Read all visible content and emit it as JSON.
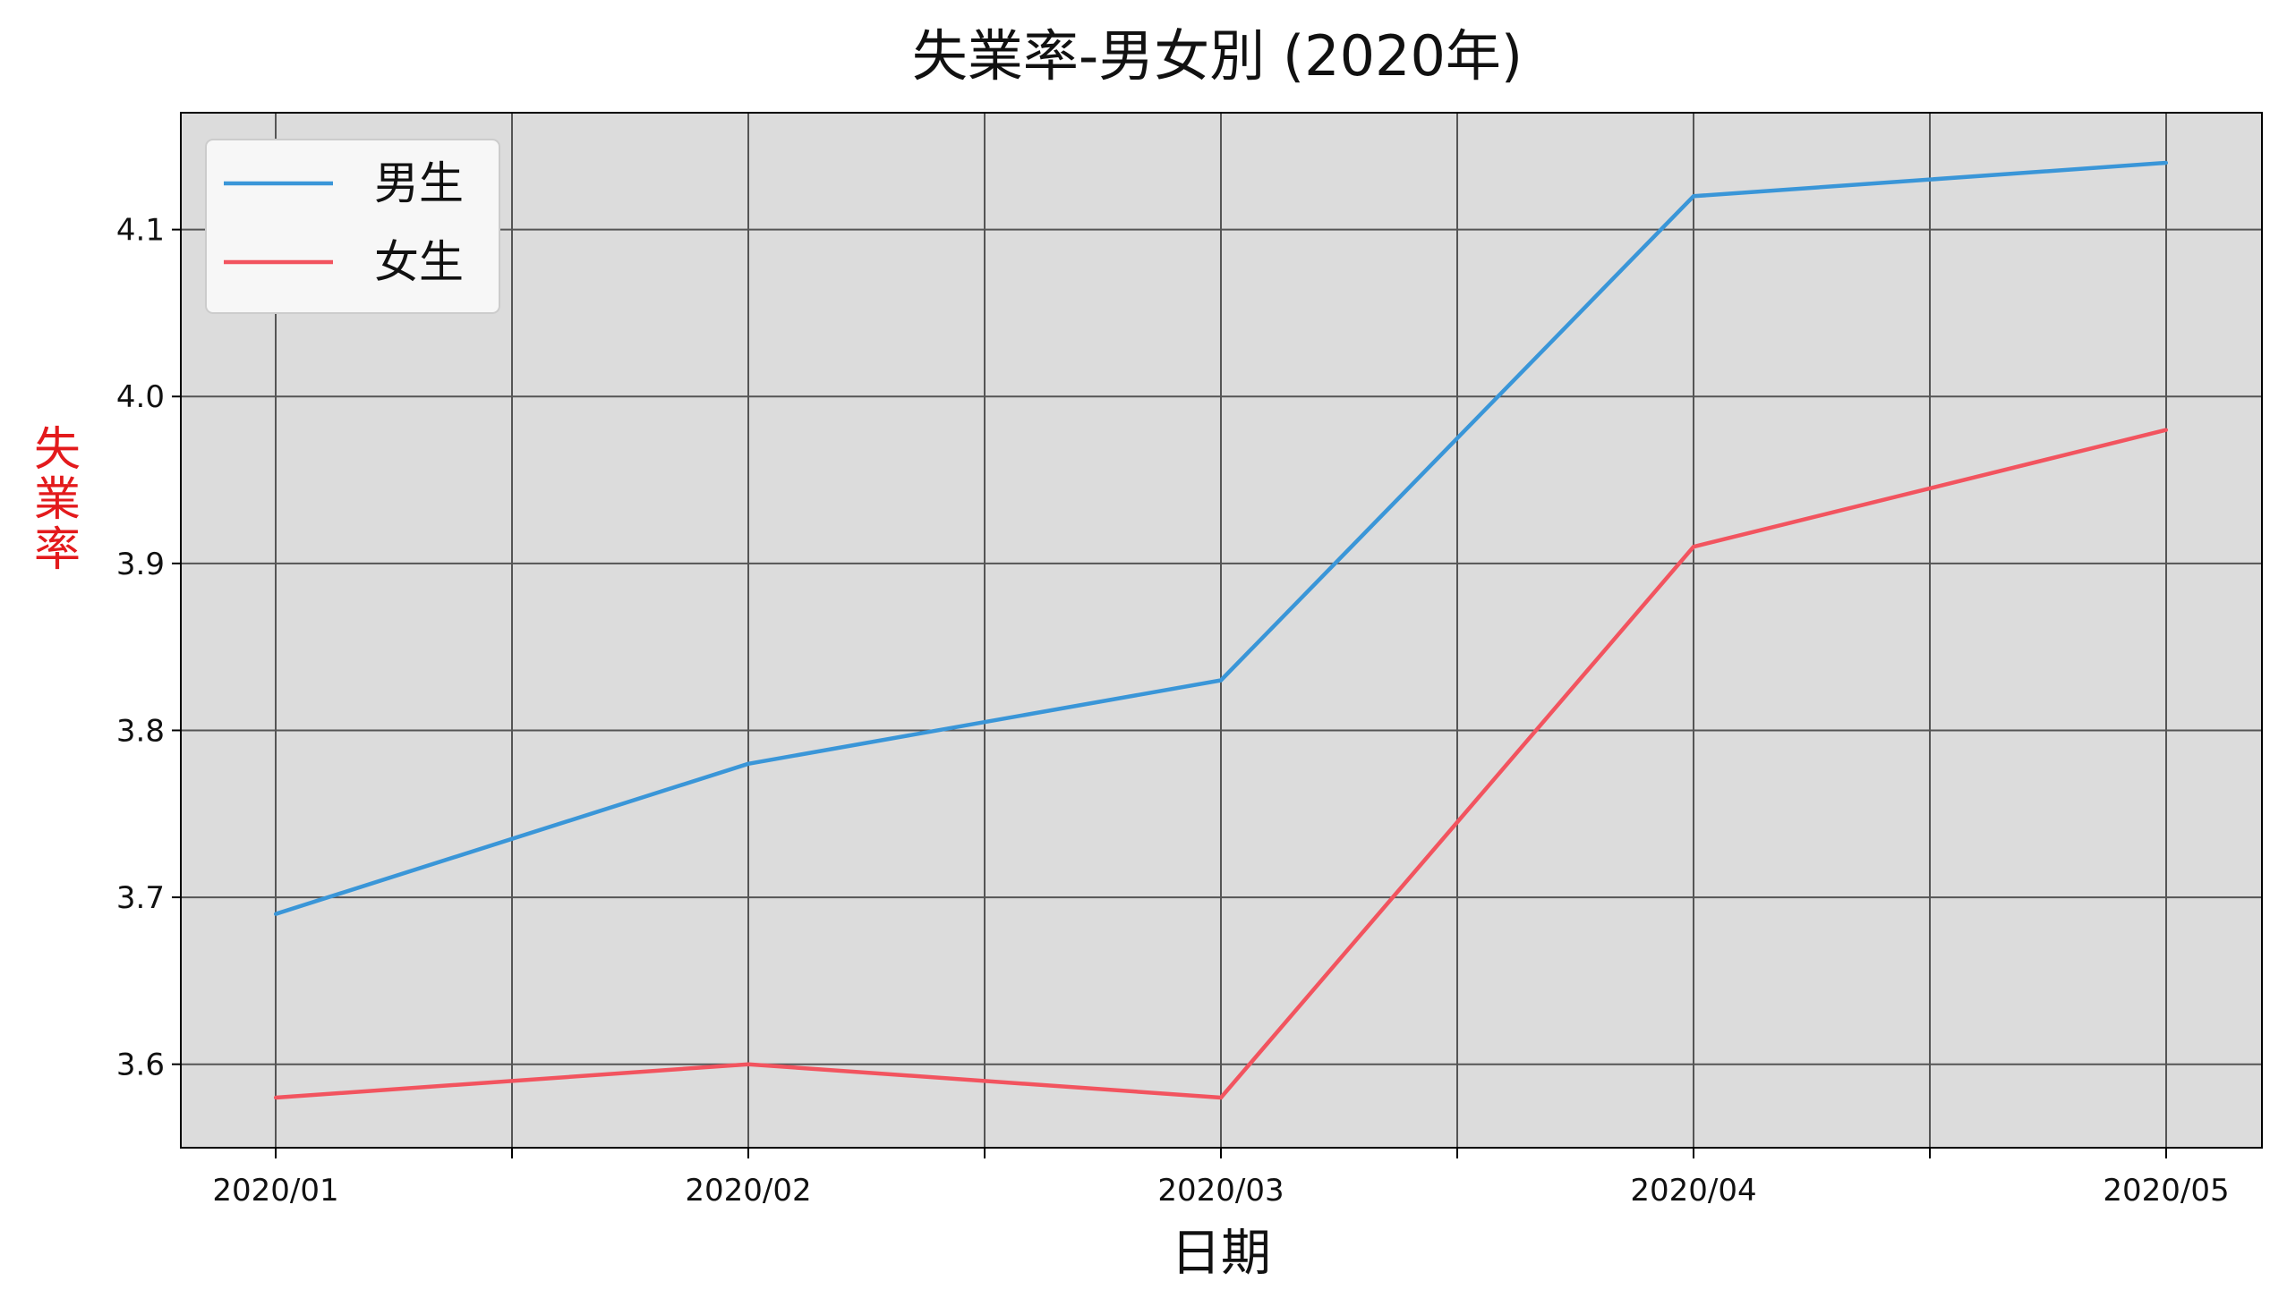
{
  "chart_data": {
    "type": "line",
    "title": "失業率-男女別 (2020年)",
    "xlabel": "日期",
    "ylabel": "失業率",
    "ylabel_color": "#e31a1c",
    "categories": [
      "2020/01",
      "2020/02",
      "2020/03",
      "2020/04",
      "2020/05"
    ],
    "series": [
      {
        "name": "男生",
        "color": "#3a96d8",
        "values": [
          3.69,
          3.78,
          3.83,
          4.12,
          4.14
        ]
      },
      {
        "name": "女生",
        "color": "#f2545f",
        "values": [
          3.58,
          3.6,
          3.58,
          3.91,
          3.98
        ]
      }
    ],
    "ylim": [
      3.55,
      4.17
    ],
    "yticks": [
      3.6,
      3.7,
      3.8,
      3.9,
      4.0,
      4.1
    ],
    "ytick_labels": [
      "3.6",
      "3.7",
      "3.8",
      "3.9",
      "4.0",
      "4.1"
    ],
    "grid": true,
    "plot_background": "#dcdcdc",
    "legend_position": "top-left"
  }
}
